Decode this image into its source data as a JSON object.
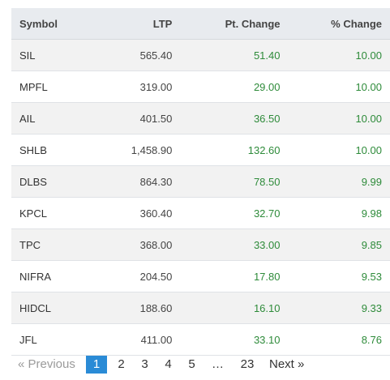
{
  "table": {
    "headers": {
      "symbol": "Symbol",
      "ltp": "LTP",
      "pt_change": "Pt. Change",
      "pct_change": "% Change"
    },
    "rows": [
      {
        "symbol": "SIL",
        "ltp": "565.40",
        "pt_change": "51.40",
        "pct_change": "10.00"
      },
      {
        "symbol": "MPFL",
        "ltp": "319.00",
        "pt_change": "29.00",
        "pct_change": "10.00"
      },
      {
        "symbol": "AIL",
        "ltp": "401.50",
        "pt_change": "36.50",
        "pct_change": "10.00"
      },
      {
        "symbol": "SHLB",
        "ltp": "1,458.90",
        "pt_change": "132.60",
        "pct_change": "10.00"
      },
      {
        "symbol": "DLBS",
        "ltp": "864.30",
        "pt_change": "78.50",
        "pct_change": "9.99"
      },
      {
        "symbol": "KPCL",
        "ltp": "360.40",
        "pt_change": "32.70",
        "pct_change": "9.98"
      },
      {
        "symbol": "TPC",
        "ltp": "368.00",
        "pt_change": "33.00",
        "pct_change": "9.85"
      },
      {
        "symbol": "NIFRA",
        "ltp": "204.50",
        "pt_change": "17.80",
        "pct_change": "9.53"
      },
      {
        "symbol": "HIDCL",
        "ltp": "188.60",
        "pt_change": "16.10",
        "pct_change": "9.33"
      },
      {
        "symbol": "JFL",
        "ltp": "411.00",
        "pt_change": "33.10",
        "pct_change": "8.76"
      }
    ]
  },
  "pagination": {
    "previous_label": "« Previous",
    "pages": [
      "1",
      "2",
      "3",
      "4",
      "5"
    ],
    "active_page": "1",
    "ellipsis": "…",
    "last_page": "23",
    "next_label": "Next »"
  },
  "colors": {
    "positive": "#2e8b3a",
    "active_page": "#2a8bd6",
    "header_bg": "#e8ebef"
  }
}
